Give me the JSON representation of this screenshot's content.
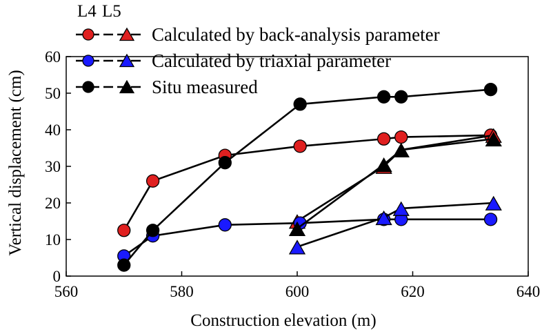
{
  "chart_data": {
    "type": "line",
    "title": "",
    "xlabel": "Construction elevation (m)",
    "ylabel": "Vertical displacement (cm)",
    "xlim": [
      560,
      640
    ],
    "ylim": [
      0,
      60
    ],
    "xticks": [
      560,
      580,
      600,
      620,
      640
    ],
    "yticks": [
      0,
      10,
      20,
      30,
      40,
      50,
      60
    ],
    "grid": false,
    "legend": {
      "placement": "top-left",
      "marker_headers": [
        "L4",
        "L5"
      ],
      "rows": [
        {
          "label": "Calculated by back-analysis parameter",
          "color": "#e02020"
        },
        {
          "label": "Calculated by triaxial parameter",
          "color": "#1a1aff"
        },
        {
          "label": "Situ measured",
          "color": "#000000"
        }
      ]
    },
    "series": [
      {
        "group": "Calculated by back-analysis parameter",
        "line": "L4",
        "marker": "circle",
        "color": "#e02020",
        "x": [
          570,
          575,
          587.5,
          600.5,
          615,
          618,
          633.5
        ],
        "y": [
          12.5,
          26,
          33,
          35.5,
          37.5,
          38,
          38.5
        ]
      },
      {
        "group": "Calculated by back-analysis parameter",
        "line": "L5",
        "marker": "triangle",
        "color": "#e02020",
        "x": [
          600,
          615,
          618,
          634
        ],
        "y": [
          15,
          30,
          34.5,
          38.5
        ]
      },
      {
        "group": "Calculated by triaxial parameter",
        "line": "L4",
        "marker": "circle",
        "color": "#1a1aff",
        "x": [
          570,
          575,
          587.5,
          600.5,
          615,
          618,
          633.5
        ],
        "y": [
          5.5,
          11,
          14,
          14.5,
          15.5,
          15.5,
          15.5
        ]
      },
      {
        "group": "Calculated by triaxial parameter",
        "line": "L5",
        "marker": "triangle",
        "color": "#1a1aff",
        "x": [
          600,
          615,
          618,
          634
        ],
        "y": [
          8,
          16,
          18.5,
          20
        ]
      },
      {
        "group": "Situ measured",
        "line": "L4",
        "marker": "circle",
        "color": "#000000",
        "x": [
          570,
          575,
          587.5,
          600.5,
          615,
          618,
          633.5
        ],
        "y": [
          3,
          12.5,
          31,
          47,
          49,
          49,
          51
        ]
      },
      {
        "group": "Situ measured",
        "line": "L5",
        "marker": "triangle",
        "color": "#000000",
        "x": [
          600,
          615,
          618,
          634
        ],
        "y": [
          13,
          30.5,
          34.5,
          37.5
        ]
      }
    ]
  }
}
